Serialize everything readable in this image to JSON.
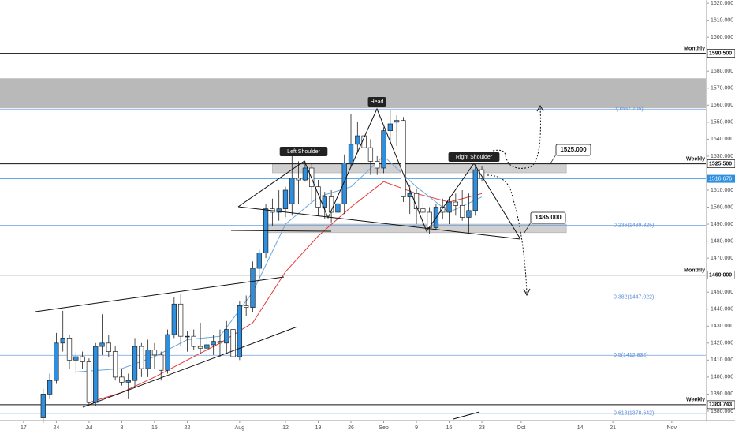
{
  "chart_data": {
    "type": "candlestick",
    "xlim": [
      -3.6,
      104.2
    ],
    "ylim": [
      1374.4,
      1621.9
    ],
    "xticks": [
      {
        "value": 0,
        "label": "17"
      },
      {
        "value": 5,
        "label": "24"
      },
      {
        "value": 10,
        "label": "Jul"
      },
      {
        "value": 15,
        "label": "8"
      },
      {
        "value": 20,
        "label": "15"
      },
      {
        "value": 25,
        "label": "22"
      },
      {
        "value": 33,
        "label": "Aug"
      },
      {
        "value": 40,
        "label": "12"
      },
      {
        "value": 45,
        "label": "19"
      },
      {
        "value": 50,
        "label": "26"
      },
      {
        "value": 55,
        "label": "Sep"
      },
      {
        "value": 60,
        "label": "9"
      },
      {
        "value": 65,
        "label": "16"
      },
      {
        "value": 70,
        "label": "23"
      },
      {
        "value": 76,
        "label": "Oct"
      },
      {
        "value": 85,
        "label": "14"
      },
      {
        "value": 90,
        "label": "21"
      },
      {
        "value": 99,
        "label": "Nov"
      }
    ],
    "yticks": [
      {
        "value": 1380,
        "label": "1380.000"
      },
      {
        "value": 1390,
        "label": "1390.000"
      },
      {
        "value": 1400,
        "label": "1400.000"
      },
      {
        "value": 1410,
        "label": "1410.000"
      },
      {
        "value": 1420,
        "label": "1420.000"
      },
      {
        "value": 1430,
        "label": "1430.000"
      },
      {
        "value": 1440,
        "label": "1440.000"
      },
      {
        "value": 1450,
        "label": "1450.000"
      },
      {
        "value": 1470,
        "label": "1470.000"
      },
      {
        "value": 1480,
        "label": "1480.000"
      },
      {
        "value": 1490,
        "label": "1490.000"
      },
      {
        "value": 1500,
        "label": "1500.000"
      },
      {
        "value": 1510,
        "label": "1510.000"
      },
      {
        "value": 1530,
        "label": "1530.000"
      },
      {
        "value": 1540,
        "label": "1540.000"
      },
      {
        "value": 1550,
        "label": "1550.000"
      },
      {
        "value": 1560,
        "label": "1560.000"
      },
      {
        "value": 1570,
        "label": "1570.000"
      },
      {
        "value": 1580,
        "label": "1580.000"
      },
      {
        "value": 1600,
        "label": "1600.000"
      },
      {
        "value": 1610,
        "label": "1610.000"
      },
      {
        "value": 1620,
        "label": "1620.000"
      }
    ],
    "up_color": "#2f8fdf",
    "down_color": "#ffffff",
    "candles": [
      null,
      null,
      null,
      [
        1376,
        1393,
        1373,
        1390
      ],
      [
        1390,
        1402,
        1387,
        1398
      ],
      [
        1398,
        1426,
        1396,
        1420
      ],
      [
        1420,
        1439,
        1415,
        1423
      ],
      [
        1423,
        1425,
        1405,
        1410
      ],
      [
        1410,
        1415,
        1402,
        1412
      ],
      [
        1412,
        1415,
        1405,
        1409
      ],
      [
        1409,
        1411,
        1383,
        1385
      ],
      [
        1385,
        1420,
        1383,
        1418
      ],
      [
        1418,
        1437,
        1413,
        1420
      ],
      [
        1420,
        1425,
        1412,
        1415
      ],
      [
        1415,
        1418,
        1398,
        1400
      ],
      [
        1400,
        1405,
        1395,
        1397
      ],
      [
        1397,
        1402,
        1387,
        1398
      ],
      [
        1398,
        1423,
        1394,
        1418
      ],
      [
        1418,
        1420,
        1400,
        1405
      ],
      [
        1405,
        1422,
        1400,
        1416
      ],
      [
        1416,
        1420,
        1405,
        1413
      ],
      [
        1413,
        1415,
        1398,
        1404
      ],
      [
        1404,
        1428,
        1402,
        1425
      ],
      [
        1425,
        1447,
        1423,
        1443
      ],
      [
        1443,
        1449,
        1418,
        1424
      ],
      [
        1424,
        1427,
        1415,
        1424
      ],
      [
        1424,
        1428,
        1416,
        1418
      ],
      [
        1418,
        1432,
        1414,
        1417
      ],
      [
        1417,
        1425,
        1410,
        1419
      ],
      [
        1419,
        1425,
        1413,
        1421
      ],
      [
        1421,
        1428,
        1412,
        1420
      ],
      [
        1420,
        1433,
        1414,
        1428
      ],
      [
        1428,
        1432,
        1401,
        1412
      ],
      [
        1412,
        1445,
        1410,
        1442
      ],
      [
        1442,
        1448,
        1436,
        1441
      ],
      [
        1441,
        1468,
        1438,
        1464
      ],
      [
        1464,
        1475,
        1458,
        1473
      ],
      [
        1473,
        1502,
        1470,
        1499
      ],
      [
        1499,
        1505,
        1489,
        1497
      ],
      [
        1497,
        1510,
        1492,
        1499
      ],
      [
        1499,
        1512,
        1494,
        1510
      ],
      [
        1502,
        1535,
        1495,
        1517
      ],
      [
        1517,
        1527,
        1502,
        1516
      ],
      [
        1516,
        1527,
        1515,
        1523
      ],
      [
        1523,
        1526,
        1503,
        1512
      ],
      [
        1512,
        1516,
        1495,
        1500
      ],
      [
        1500,
        1509,
        1493,
        1506
      ],
      [
        1506,
        1510,
        1491,
        1497
      ],
      [
        1497,
        1508,
        1490,
        1502
      ],
      [
        1502,
        1531,
        1496,
        1526
      ],
      [
        1526,
        1555,
        1524,
        1537
      ],
      [
        1537,
        1550,
        1532,
        1542
      ],
      [
        1542,
        1551,
        1528,
        1535
      ],
      [
        1535,
        1540,
        1519,
        1527
      ],
      [
        1527,
        1530,
        1519,
        1523
      ],
      [
        1523,
        1547,
        1520,
        1545
      ],
      [
        1545,
        1557,
        1538,
        1549
      ],
      [
        1550,
        1554,
        1536,
        1551
      ],
      [
        1551,
        1553,
        1503,
        1506
      ],
      [
        1506,
        1513,
        1496,
        1508
      ],
      [
        1508,
        1511,
        1490,
        1499
      ],
      [
        1499,
        1502,
        1489,
        1497
      ],
      [
        1497,
        1500,
        1484,
        1488
      ],
      [
        1488,
        1502,
        1487,
        1500
      ],
      [
        1500,
        1505,
        1493,
        1497
      ],
      [
        1497,
        1506,
        1490,
        1503
      ],
      [
        1503,
        1508,
        1495,
        1501
      ],
      [
        1501,
        1510,
        1492,
        1494
      ],
      [
        1494,
        1508,
        1485,
        1498
      ],
      [
        1498,
        1525,
        1495,
        1522
      ],
      [
        1522,
        1524,
        1515,
        1517
      ]
    ],
    "moving_averages": [
      {
        "color": "#e53935",
        "x": [
          10,
          15,
          20,
          25,
          30,
          35,
          40,
          45,
          50,
          55,
          60,
          65,
          70
        ],
        "values": [
          1385,
          1391,
          1400,
          1410,
          1420,
          1432,
          1462,
          1483,
          1500,
          1515,
          1508,
          1503,
          1508
        ]
      },
      {
        "color": "#6fa8dc",
        "x": [
          8,
          15,
          20,
          25,
          30,
          35,
          40,
          45,
          50,
          55,
          60,
          65,
          70
        ],
        "values": [
          1403,
          1405,
          1412,
          1422,
          1424,
          1450,
          1490,
          1506,
          1512,
          1530,
          1512,
          1497,
          1506
        ]
      }
    ],
    "zones": [
      {
        "from": 1558.3,
        "to": 1575.8,
        "x": [
          -3.6,
          104.2
        ]
      },
      {
        "from": 1520.2,
        "to": 1525.5,
        "x": [
          38,
          82.9
        ]
      },
      {
        "from": 1485,
        "to": 1490,
        "x": [
          37,
          82.9
        ]
      }
    ],
    "levels": [
      {
        "text": "Monthly",
        "value": 1590.5,
        "value_label": "1590.500"
      },
      {
        "text": "Weekly",
        "value": 1525.5,
        "value_label": "1525.500"
      },
      {
        "text": "Monthly",
        "value": 1460,
        "value_label": "1460.000"
      },
      {
        "text": "Weekly",
        "value": 1383.743,
        "value_label": "1383.743"
      }
    ],
    "fib_levels": [
      {
        "value": 1557.705,
        "label": "0(1557.705)"
      },
      {
        "value": 1489.325,
        "label": "0.236(1489.325)"
      },
      {
        "value": 1447.022,
        "label": "0.382(1447.022)"
      },
      {
        "value": 1412.832,
        "label": "0.5(1412.832)"
      },
      {
        "value": 1378.642,
        "label": "0.618(1378.642)"
      }
    ],
    "last_price": {
      "value": 1516.676,
      "label": "1516.676"
    },
    "callouts": [
      {
        "value": 1525,
        "label": "1525.000"
      },
      {
        "value": 1485,
        "label": "1485.000"
      }
    ],
    "annotations": [
      "Left Shoulder",
      "Head",
      "Right Shoulder"
    ]
  }
}
